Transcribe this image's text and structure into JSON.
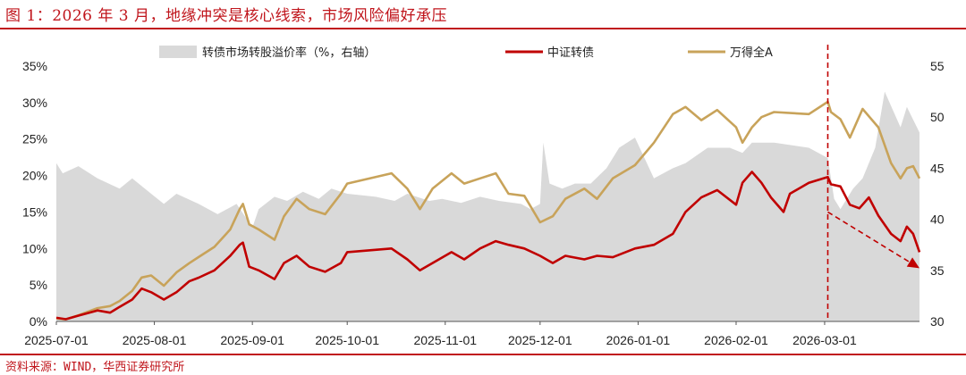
{
  "header": {
    "title": "图 1：2026 年 3 月，地缘冲突是核心线索，市场风险偏好承压"
  },
  "footer": {
    "source": "资料来源：WIND，华西证券研究所"
  },
  "colors": {
    "brand": "#c0151c",
    "premium_fill": "#d9d9d9",
    "cb_line": "#c00000",
    "wind_line": "#c8a35a"
  },
  "chart_data": {
    "type": "line",
    "legend_placement": "top",
    "grid": false,
    "x_ticks": [
      "2025-07-01",
      "2025-08-01",
      "2025-09-01",
      "2025-10-01",
      "2025-11-01",
      "2025-12-01",
      "2026-01-01",
      "2026-02-01",
      "2026-03-01"
    ],
    "x_range": [
      "2025-07-01",
      "2026-03-31"
    ],
    "y_left": {
      "range": [
        0,
        35
      ],
      "ticks": [
        "0%",
        "5%",
        "10%",
        "15%",
        "20%",
        "25%",
        "30%",
        "35%"
      ]
    },
    "y_right": {
      "range": [
        30,
        55
      ],
      "ticks": [
        "30",
        "35",
        "40",
        "45",
        "50",
        "55"
      ]
    },
    "series": [
      {
        "name": "转债市场转股溢价率（%，右轴）",
        "kind": "area",
        "axis": "right",
        "points": [
          [
            "2025-07-01",
            45.5
          ],
          [
            "2025-07-03",
            44.5
          ],
          [
            "2025-07-08",
            45.2
          ],
          [
            "2025-07-14",
            44.0
          ],
          [
            "2025-07-21",
            43.0
          ],
          [
            "2025-07-25",
            44.0
          ],
          [
            "2025-07-31",
            42.5
          ],
          [
            "2025-08-04",
            41.5
          ],
          [
            "2025-08-08",
            42.5
          ],
          [
            "2025-08-15",
            41.5
          ],
          [
            "2025-08-21",
            40.5
          ],
          [
            "2025-08-27",
            41.5
          ],
          [
            "2025-09-01",
            39.2
          ],
          [
            "2025-09-03",
            41.0
          ],
          [
            "2025-09-08",
            42.2
          ],
          [
            "2025-09-12",
            41.8
          ],
          [
            "2025-09-17",
            42.7
          ],
          [
            "2025-09-22",
            42.0
          ],
          [
            "2025-09-26",
            43.0
          ],
          [
            "2025-10-01",
            42.5
          ],
          [
            "2025-10-10",
            42.2
          ],
          [
            "2025-10-16",
            41.8
          ],
          [
            "2025-10-20",
            42.5
          ],
          [
            "2025-10-27",
            41.8
          ],
          [
            "2025-10-31",
            42.0
          ],
          [
            "2025-11-06",
            41.6
          ],
          [
            "2025-11-12",
            42.2
          ],
          [
            "2025-11-18",
            41.8
          ],
          [
            "2025-11-25",
            41.5
          ],
          [
            "2025-11-28",
            41.0
          ],
          [
            "2025-12-01",
            41.5
          ],
          [
            "2025-12-02",
            47.5
          ],
          [
            "2025-12-04",
            43.5
          ],
          [
            "2025-12-08",
            43.0
          ],
          [
            "2025-12-12",
            43.5
          ],
          [
            "2025-12-17",
            43.5
          ],
          [
            "2025-12-22",
            45.0
          ],
          [
            "2025-12-26",
            47.0
          ],
          [
            "2025-12-31",
            48.0
          ],
          [
            "2026-01-06",
            44.0
          ],
          [
            "2026-01-12",
            45.0
          ],
          [
            "2026-01-16",
            45.5
          ],
          [
            "2026-01-23",
            47.0
          ],
          [
            "2026-01-30",
            47.0
          ],
          [
            "2026-02-03",
            46.5
          ],
          [
            "2026-02-06",
            47.5
          ],
          [
            "2026-02-13",
            47.5
          ],
          [
            "2026-02-24",
            47.0
          ],
          [
            "2026-03-02",
            46.0
          ],
          [
            "2026-03-04",
            42.0
          ],
          [
            "2026-03-06",
            41.0
          ],
          [
            "2026-03-10",
            43.0
          ],
          [
            "2026-03-13",
            44.0
          ],
          [
            "2026-03-17",
            47.0
          ],
          [
            "2026-03-20",
            52.5
          ],
          [
            "2026-03-25",
            49.0
          ],
          [
            "2026-03-27",
            51.0
          ],
          [
            "2026-03-31",
            48.5
          ]
        ]
      },
      {
        "name": "中证转债",
        "kind": "line",
        "axis": "left",
        "points": [
          [
            "2025-07-01",
            0.5
          ],
          [
            "2025-07-04",
            0.3
          ],
          [
            "2025-07-08",
            0.8
          ],
          [
            "2025-07-14",
            1.5
          ],
          [
            "2025-07-18",
            1.2
          ],
          [
            "2025-07-21",
            2.0
          ],
          [
            "2025-07-25",
            3.0
          ],
          [
            "2025-07-28",
            4.5
          ],
          [
            "2025-07-31",
            4.0
          ],
          [
            "2025-08-04",
            3.0
          ],
          [
            "2025-08-08",
            4.0
          ],
          [
            "2025-08-12",
            5.5
          ],
          [
            "2025-08-15",
            6.0
          ],
          [
            "2025-08-20",
            7.0
          ],
          [
            "2025-08-25",
            9.0
          ],
          [
            "2025-08-28",
            10.5
          ],
          [
            "2025-08-29",
            10.8
          ],
          [
            "2025-08-31",
            7.5
          ],
          [
            "2025-09-03",
            7.0
          ],
          [
            "2025-09-08",
            5.8
          ],
          [
            "2025-09-11",
            8.0
          ],
          [
            "2025-09-15",
            9.0
          ],
          [
            "2025-09-19",
            7.5
          ],
          [
            "2025-09-24",
            6.8
          ],
          [
            "2025-09-29",
            8.0
          ],
          [
            "2025-10-01",
            9.5
          ],
          [
            "2025-10-15",
            10.0
          ],
          [
            "2025-10-20",
            8.5
          ],
          [
            "2025-10-24",
            7.0
          ],
          [
            "2025-10-28",
            8.0
          ],
          [
            "2025-11-03",
            9.5
          ],
          [
            "2025-11-07",
            8.5
          ],
          [
            "2025-11-12",
            10.0
          ],
          [
            "2025-11-17",
            11.0
          ],
          [
            "2025-11-21",
            10.5
          ],
          [
            "2025-11-26",
            10.0
          ],
          [
            "2025-12-01",
            9.0
          ],
          [
            "2025-12-05",
            8.0
          ],
          [
            "2025-12-09",
            9.0
          ],
          [
            "2025-12-15",
            8.5
          ],
          [
            "2025-12-19",
            9.0
          ],
          [
            "2025-12-24",
            8.8
          ],
          [
            "2025-12-31",
            10.0
          ],
          [
            "2026-01-06",
            10.5
          ],
          [
            "2026-01-12",
            12.0
          ],
          [
            "2026-01-16",
            15.0
          ],
          [
            "2026-01-21",
            17.0
          ],
          [
            "2026-01-26",
            18.0
          ],
          [
            "2026-02-01",
            16.0
          ],
          [
            "2026-02-03",
            19.0
          ],
          [
            "2026-02-06",
            20.5
          ],
          [
            "2026-02-09",
            19.0
          ],
          [
            "2026-02-12",
            17.0
          ],
          [
            "2026-02-16",
            15.0
          ],
          [
            "2026-02-18",
            17.5
          ],
          [
            "2026-02-24",
            19.0
          ],
          [
            "2026-03-02",
            19.8
          ],
          [
            "2026-03-03",
            18.8
          ],
          [
            "2026-03-06",
            18.5
          ],
          [
            "2026-03-09",
            16.0
          ],
          [
            "2026-03-12",
            15.5
          ],
          [
            "2026-03-15",
            17.0
          ],
          [
            "2026-03-18",
            14.5
          ],
          [
            "2026-03-22",
            12.0
          ],
          [
            "2026-03-25",
            11.0
          ],
          [
            "2026-03-27",
            13.0
          ],
          [
            "2026-03-29",
            12.0
          ],
          [
            "2026-03-31",
            9.5
          ]
        ]
      },
      {
        "name": "万得全A",
        "kind": "line",
        "axis": "right",
        "points": [
          [
            "2025-07-01",
            30.3
          ],
          [
            "2025-07-04",
            30.2
          ],
          [
            "2025-07-08",
            30.6
          ],
          [
            "2025-07-14",
            31.3
          ],
          [
            "2025-07-18",
            31.5
          ],
          [
            "2025-07-21",
            32.0
          ],
          [
            "2025-07-25",
            33.0
          ],
          [
            "2025-07-28",
            34.3
          ],
          [
            "2025-07-31",
            34.5
          ],
          [
            "2025-08-04",
            33.5
          ],
          [
            "2025-08-08",
            34.8
          ],
          [
            "2025-08-12",
            35.7
          ],
          [
            "2025-08-15",
            36.3
          ],
          [
            "2025-08-20",
            37.3
          ],
          [
            "2025-08-25",
            39.0
          ],
          [
            "2025-08-28",
            41.0
          ],
          [
            "2025-08-29",
            41.5
          ],
          [
            "2025-08-31",
            39.5
          ],
          [
            "2025-09-03",
            39.0
          ],
          [
            "2025-09-08",
            38.0
          ],
          [
            "2025-09-11",
            40.3
          ],
          [
            "2025-09-15",
            42.0
          ],
          [
            "2025-09-19",
            41.0
          ],
          [
            "2025-09-24",
            40.5
          ],
          [
            "2025-09-29",
            42.5
          ],
          [
            "2025-10-01",
            43.5
          ],
          [
            "2025-10-15",
            44.5
          ],
          [
            "2025-10-20",
            43.0
          ],
          [
            "2025-10-24",
            41.0
          ],
          [
            "2025-10-28",
            43.0
          ],
          [
            "2025-11-03",
            44.5
          ],
          [
            "2025-11-07",
            43.5
          ],
          [
            "2025-11-12",
            44.0
          ],
          [
            "2025-11-17",
            44.5
          ],
          [
            "2025-11-21",
            42.5
          ],
          [
            "2025-11-26",
            42.3
          ],
          [
            "2025-12-01",
            39.7
          ],
          [
            "2025-12-05",
            40.3
          ],
          [
            "2025-12-09",
            42.0
          ],
          [
            "2025-12-15",
            43.0
          ],
          [
            "2025-12-19",
            42.0
          ],
          [
            "2025-12-24",
            44.0
          ],
          [
            "2025-12-31",
            45.3
          ],
          [
            "2026-01-06",
            47.5
          ],
          [
            "2026-01-12",
            50.3
          ],
          [
            "2026-01-16",
            51.0
          ],
          [
            "2026-01-21",
            49.7
          ],
          [
            "2026-01-26",
            50.7
          ],
          [
            "2026-02-01",
            49.0
          ],
          [
            "2026-02-03",
            47.5
          ],
          [
            "2026-02-06",
            49.0
          ],
          [
            "2026-02-09",
            50.0
          ],
          [
            "2026-02-13",
            50.5
          ],
          [
            "2026-02-24",
            50.3
          ],
          [
            "2026-03-02",
            51.5
          ],
          [
            "2026-03-03",
            50.5
          ],
          [
            "2026-03-06",
            49.8
          ],
          [
            "2026-03-09",
            48.0
          ],
          [
            "2026-03-13",
            50.8
          ],
          [
            "2026-03-18",
            49.0
          ],
          [
            "2026-03-22",
            45.5
          ],
          [
            "2026-03-25",
            44.0
          ],
          [
            "2026-03-27",
            45.0
          ],
          [
            "2026-03-29",
            45.2
          ],
          [
            "2026-03-31",
            44.0
          ]
        ]
      }
    ],
    "annotations": [
      {
        "type": "vline",
        "date": "2026-03-02"
      },
      {
        "type": "arrow",
        "from": [
          "2026-03-02",
          15.0
        ],
        "to": [
          "2026-03-31",
          7.3
        ]
      }
    ]
  }
}
